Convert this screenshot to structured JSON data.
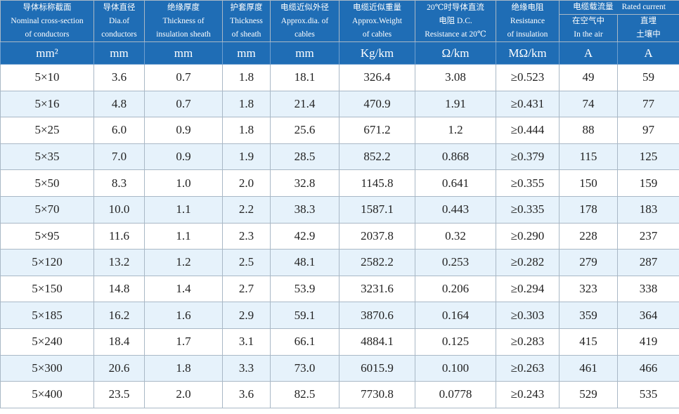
{
  "header": {
    "columns": [
      {
        "lines": [
          "导体标称截面",
          "Nominal cross-section",
          "of conductors"
        ]
      },
      {
        "lines": [
          "导体直径",
          "Dia.of",
          "conductors"
        ]
      },
      {
        "lines": [
          "绝缘厚度",
          "Thickness of",
          "insulation sheath"
        ]
      },
      {
        "lines": [
          "护套厚度",
          "Thickness",
          "of sheath"
        ]
      },
      {
        "lines": [
          "电缆近似外径",
          "Approx.dia. of",
          "cables"
        ]
      },
      {
        "lines": [
          "电缆近似重量",
          "Approx.Weight",
          "of cables"
        ]
      },
      {
        "lines": [
          "20℃时导体直流",
          "电阻 D.C.",
          "Resistance at 20℃"
        ]
      },
      {
        "lines": [
          "绝缘电阻",
          "Resistance",
          "of insulation"
        ]
      }
    ],
    "group": {
      "lines": [
        "电缆载流量",
        "Rated current"
      ]
    },
    "subcolumns": [
      {
        "lines": [
          "在空气中",
          "In the air"
        ]
      },
      {
        "lines": [
          "直埋",
          "土壤中"
        ]
      }
    ]
  },
  "units": [
    "mm²",
    "mm",
    "mm",
    "mm",
    "mm",
    "Kg/km",
    "Ω/km",
    "MΩ/km",
    "A",
    "A"
  ],
  "rows": [
    [
      "5×10",
      "3.6",
      "0.7",
      "1.8",
      "18.1",
      "326.4",
      "3.08",
      "≥0.523",
      "49",
      "59"
    ],
    [
      "5×16",
      "4.8",
      "0.7",
      "1.8",
      "21.4",
      "470.9",
      "1.91",
      "≥0.431",
      "74",
      "77"
    ],
    [
      "5×25",
      "6.0",
      "0.9",
      "1.8",
      "25.6",
      "671.2",
      "1.2",
      "≥0.444",
      "88",
      "97"
    ],
    [
      "5×35",
      "7.0",
      "0.9",
      "1.9",
      "28.5",
      "852.2",
      "0.868",
      "≥0.379",
      "115",
      "125"
    ],
    [
      "5×50",
      "8.3",
      "1.0",
      "2.0",
      "32.8",
      "1145.8",
      "0.641",
      "≥0.355",
      "150",
      "159"
    ],
    [
      "5×70",
      "10.0",
      "1.1",
      "2.2",
      "38.3",
      "1587.1",
      "0.443",
      "≥0.335",
      "178",
      "183"
    ],
    [
      "5×95",
      "11.6",
      "1.1",
      "2.3",
      "42.9",
      "2037.8",
      "0.32",
      "≥0.290",
      "228",
      "237"
    ],
    [
      "5×120",
      "13.2",
      "1.2",
      "2.5",
      "48.1",
      "2582.2",
      "0.253",
      "≥0.282",
      "279",
      "287"
    ],
    [
      "5×150",
      "14.8",
      "1.4",
      "2.7",
      "53.9",
      "3231.6",
      "0.206",
      "≥0.294",
      "323",
      "338"
    ],
    [
      "5×185",
      "16.2",
      "1.6",
      "2.9",
      "59.1",
      "3870.6",
      "0.164",
      "≥0.303",
      "359",
      "364"
    ],
    [
      "5×240",
      "18.4",
      "1.7",
      "3.1",
      "66.1",
      "4884.1",
      "0.125",
      "≥0.283",
      "415",
      "419"
    ],
    [
      "5×300",
      "20.6",
      "1.8",
      "3.3",
      "73.0",
      "6015.9",
      "0.100",
      "≥0.263",
      "461",
      "466"
    ],
    [
      "5×400",
      "23.5",
      "2.0",
      "3.6",
      "82.5",
      "7730.8",
      "0.0778",
      "≥0.243",
      "529",
      "535"
    ]
  ]
}
